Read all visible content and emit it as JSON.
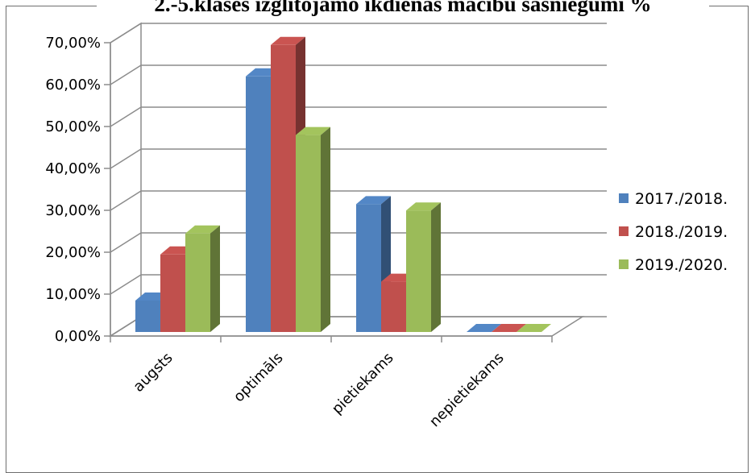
{
  "chart_data": {
    "type": "bar",
    "title": "2.-5.klases izglītojamo ikdienas mācību sasniegumi %",
    "categories": [
      "augsts",
      "optimāls",
      "pietiekams",
      "nepietiekams"
    ],
    "series": [
      {
        "name": "2017./2018.",
        "values": [
          7.5,
          61.0,
          30.5,
          0.0
        ],
        "color": "#4f81bd"
      },
      {
        "name": "2018./2019.",
        "values": [
          18.5,
          68.5,
          12.0,
          0.0
        ],
        "color": "#c0504d"
      },
      {
        "name": "2019./2020.",
        "values": [
          23.5,
          47.0,
          29.0,
          0.0
        ],
        "color": "#9bbb59"
      }
    ],
    "yticks": [
      "0,00%",
      "10,00%",
      "20,00%",
      "30,00%",
      "40,00%",
      "50,00%",
      "60,00%",
      "70,00%"
    ],
    "ylim": [
      0,
      70
    ],
    "grid": true,
    "legend": "right"
  }
}
